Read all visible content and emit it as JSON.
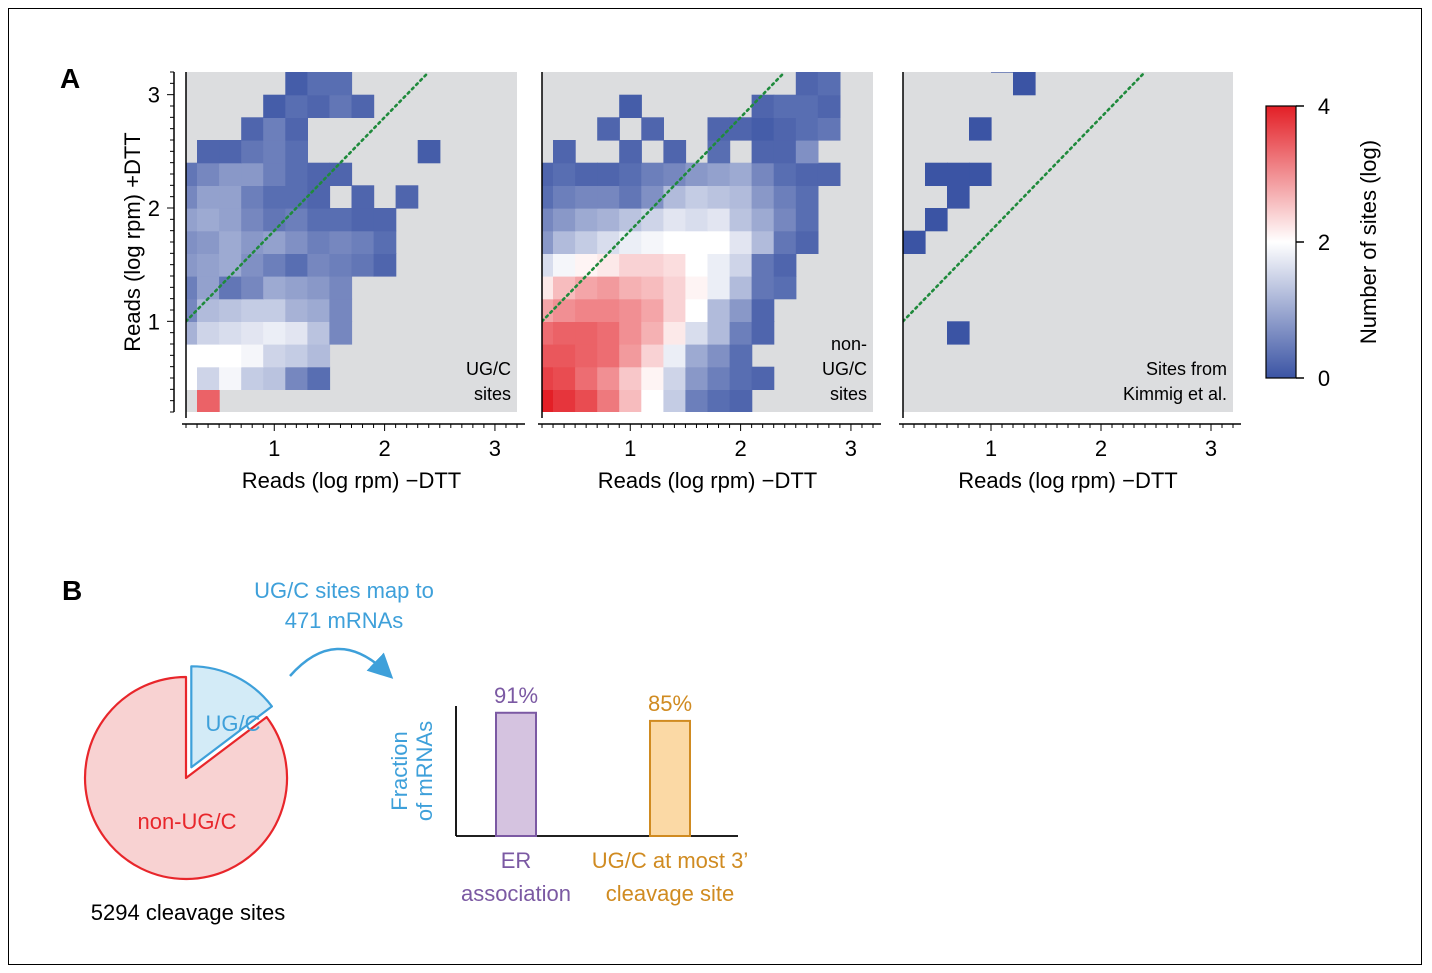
{
  "panel_labels": {
    "a": "A",
    "b": "B"
  },
  "colors": {
    "low": "#3b54a4",
    "mid": "#ffffff",
    "high": "#e31f26",
    "panel_bg": "#dcdddf",
    "diagonal": "#1f8a3c",
    "ugc_blue": "#3ea0da",
    "nonugc_red": "#e8262b",
    "purple": "#7b59a3",
    "orange": "#d08b21"
  },
  "chart_data": [
    {
      "type": "heatmap",
      "title": "",
      "xlabel": "Reads (log rpm) −DTT",
      "ylabel": "Reads (log rpm) +DTT",
      "xlim": [
        0.2,
        3.2
      ],
      "ylim": [
        0.2,
        3.2
      ],
      "xticks": [
        1,
        2,
        3
      ],
      "yticks": [
        1,
        2,
        3
      ],
      "bin_width": 0.2,
      "diagonal": "y = x",
      "annotation": "UG/C\nsites",
      "cells": [
        [
          0.4,
          0.3,
          3.4
        ],
        [
          0.2,
          0.5,
          2.0
        ],
        [
          0.4,
          0.5,
          1.5
        ],
        [
          0.6,
          0.5,
          1.9
        ],
        [
          0.8,
          0.5,
          1.4
        ],
        [
          1.0,
          0.5,
          1.3
        ],
        [
          1.2,
          0.5,
          0.6
        ],
        [
          1.4,
          0.5,
          0.3
        ],
        [
          0.2,
          0.7,
          2.0
        ],
        [
          0.4,
          0.7,
          2.0
        ],
        [
          0.6,
          0.7,
          2.0
        ],
        [
          0.8,
          0.7,
          1.9
        ],
        [
          1.0,
          0.7,
          1.5
        ],
        [
          1.2,
          0.7,
          1.4
        ],
        [
          1.4,
          0.7,
          1.2
        ],
        [
          0.2,
          0.9,
          1.1
        ],
        [
          0.4,
          0.9,
          1.5
        ],
        [
          0.6,
          0.9,
          1.6
        ],
        [
          0.8,
          0.9,
          1.7
        ],
        [
          1.0,
          0.9,
          1.8
        ],
        [
          1.2,
          0.9,
          1.7
        ],
        [
          1.4,
          0.9,
          1.3
        ],
        [
          1.6,
          0.9,
          0.6
        ],
        [
          0.2,
          1.1,
          0.6
        ],
        [
          0.4,
          1.1,
          1.2
        ],
        [
          0.6,
          1.1,
          1.3
        ],
        [
          0.8,
          1.1,
          1.4
        ],
        [
          1.0,
          1.1,
          1.4
        ],
        [
          1.2,
          1.1,
          1.1
        ],
        [
          1.4,
          1.1,
          1.0
        ],
        [
          1.6,
          1.1,
          0.6
        ],
        [
          0.2,
          1.3,
          0.5
        ],
        [
          0.4,
          1.3,
          0.9
        ],
        [
          0.6,
          1.3,
          0.4
        ],
        [
          0.8,
          1.3,
          0.6
        ],
        [
          1.0,
          1.3,
          1.0
        ],
        [
          1.2,
          1.3,
          0.9
        ],
        [
          1.4,
          1.3,
          0.8
        ],
        [
          1.6,
          1.3,
          0.6
        ],
        [
          0.2,
          1.5,
          0.8
        ],
        [
          0.4,
          1.5,
          0.9
        ],
        [
          0.6,
          1.5,
          1.0
        ],
        [
          0.8,
          1.5,
          0.7
        ],
        [
          1.0,
          1.5,
          0.5
        ],
        [
          1.2,
          1.5,
          0.3
        ],
        [
          1.4,
          1.5,
          0.6
        ],
        [
          1.6,
          1.5,
          0.5
        ],
        [
          1.8,
          1.5,
          0.4
        ],
        [
          2.0,
          1.5,
          0.2
        ],
        [
          0.2,
          1.7,
          0.7
        ],
        [
          0.4,
          1.7,
          0.8
        ],
        [
          0.6,
          1.7,
          1.0
        ],
        [
          0.8,
          1.7,
          0.8
        ],
        [
          1.0,
          1.7,
          0.9
        ],
        [
          1.2,
          1.7,
          0.7
        ],
        [
          1.4,
          1.7,
          0.5
        ],
        [
          1.6,
          1.7,
          0.6
        ],
        [
          1.8,
          1.7,
          0.5
        ],
        [
          2.0,
          1.7,
          0.3
        ],
        [
          0.2,
          1.9,
          0.9
        ],
        [
          0.4,
          1.9,
          1.0
        ],
        [
          0.6,
          1.9,
          0.9
        ],
        [
          0.8,
          1.9,
          0.6
        ],
        [
          1.0,
          1.9,
          0.4
        ],
        [
          1.2,
          1.9,
          0.5
        ],
        [
          1.4,
          1.9,
          0.3
        ],
        [
          1.6,
          1.9,
          0.3
        ],
        [
          1.8,
          1.9,
          0.2
        ],
        [
          2.0,
          1.9,
          0.2
        ],
        [
          0.2,
          2.1,
          0.6
        ],
        [
          0.4,
          2.1,
          0.9
        ],
        [
          0.6,
          2.1,
          0.9
        ],
        [
          0.8,
          2.1,
          0.5
        ],
        [
          1.0,
          2.1,
          0.3
        ],
        [
          1.2,
          2.1,
          0.3
        ],
        [
          1.4,
          2.1,
          0.2
        ],
        [
          1.8,
          2.1,
          0.2
        ],
        [
          2.2,
          2.1,
          0.2
        ],
        [
          0.2,
          2.3,
          0.4
        ],
        [
          0.4,
          2.3,
          0.6
        ],
        [
          0.6,
          2.3,
          0.8
        ],
        [
          0.8,
          2.3,
          0.8
        ],
        [
          1.0,
          2.3,
          0.5
        ],
        [
          1.2,
          2.3,
          0.3
        ],
        [
          1.4,
          2.3,
          0.2
        ],
        [
          1.6,
          2.3,
          0.2
        ],
        [
          0.4,
          2.5,
          0.2
        ],
        [
          0.6,
          2.5,
          0.2
        ],
        [
          0.8,
          2.5,
          0.4
        ],
        [
          1.0,
          2.5,
          0.5
        ],
        [
          1.2,
          2.5,
          0.3
        ],
        [
          2.4,
          2.5,
          0.1
        ],
        [
          0.8,
          2.7,
          0.2
        ],
        [
          1.0,
          2.7,
          0.5
        ],
        [
          1.2,
          2.7,
          0.2
        ],
        [
          1.0,
          2.9,
          0.1
        ],
        [
          1.2,
          2.9,
          0.3
        ],
        [
          1.4,
          2.9,
          0.2
        ],
        [
          1.6,
          2.9,
          0.4
        ],
        [
          1.8,
          2.9,
          0.2
        ],
        [
          1.2,
          3.1,
          0.1
        ],
        [
          1.4,
          3.1,
          0.3
        ],
        [
          1.6,
          3.1,
          0.3
        ]
      ]
    },
    {
      "type": "heatmap",
      "title": "",
      "xlabel": "Reads (log rpm) −DTT",
      "ylabel": "",
      "xlim": [
        0.2,
        3.2
      ],
      "ylim": [
        0.2,
        3.2
      ],
      "xticks": [
        1,
        2,
        3
      ],
      "yticks": [],
      "bin_width": 0.2,
      "diagonal": "y = x",
      "annotation": "non-\nUG/C\nsites",
      "cells": [
        [
          0.2,
          0.3,
          4.0
        ],
        [
          0.4,
          0.3,
          3.8
        ],
        [
          0.6,
          0.3,
          3.6
        ],
        [
          0.8,
          0.3,
          3.2
        ],
        [
          1.0,
          0.3,
          2.6
        ],
        [
          1.2,
          0.3,
          2.0
        ],
        [
          1.4,
          0.3,
          1.4
        ],
        [
          1.6,
          0.3,
          0.5
        ],
        [
          1.8,
          0.3,
          0.3
        ],
        [
          2.0,
          0.3,
          0.2
        ],
        [
          0.2,
          0.5,
          3.7
        ],
        [
          0.4,
          0.5,
          3.6
        ],
        [
          0.6,
          0.5,
          3.3
        ],
        [
          0.8,
          0.5,
          3.0
        ],
        [
          1.0,
          0.5,
          2.5
        ],
        [
          1.2,
          0.5,
          2.1
        ],
        [
          1.4,
          0.5,
          1.5
        ],
        [
          1.6,
          0.5,
          0.8
        ],
        [
          1.8,
          0.5,
          0.5
        ],
        [
          2.0,
          0.5,
          0.3
        ],
        [
          2.2,
          0.5,
          0.2
        ],
        [
          0.2,
          0.7,
          3.5
        ],
        [
          0.4,
          0.7,
          3.5
        ],
        [
          0.6,
          0.7,
          3.4
        ],
        [
          0.8,
          0.7,
          3.3
        ],
        [
          1.0,
          0.7,
          2.9
        ],
        [
          1.2,
          0.7,
          2.4
        ],
        [
          1.4,
          0.7,
          1.8
        ],
        [
          1.6,
          0.7,
          1.0
        ],
        [
          1.8,
          0.7,
          0.7
        ],
        [
          2.0,
          0.7,
          0.3
        ],
        [
          0.2,
          0.9,
          3.3
        ],
        [
          0.4,
          0.9,
          3.4
        ],
        [
          0.6,
          0.9,
          3.4
        ],
        [
          0.8,
          0.9,
          3.3
        ],
        [
          1.0,
          0.9,
          3.0
        ],
        [
          1.2,
          0.9,
          2.7
        ],
        [
          1.4,
          0.9,
          2.2
        ],
        [
          1.6,
          0.9,
          1.6
        ],
        [
          1.8,
          0.9,
          1.2
        ],
        [
          2.0,
          0.9,
          0.5
        ],
        [
          2.2,
          0.9,
          0.2
        ],
        [
          0.2,
          1.1,
          2.8
        ],
        [
          0.4,
          1.1,
          3.0
        ],
        [
          0.6,
          1.1,
          3.1
        ],
        [
          0.8,
          1.1,
          3.1
        ],
        [
          1.0,
          1.1,
          3.0
        ],
        [
          1.2,
          1.1,
          2.8
        ],
        [
          1.4,
          1.1,
          2.4
        ],
        [
          1.6,
          1.1,
          2.0
        ],
        [
          1.8,
          1.1,
          1.2
        ],
        [
          2.0,
          1.1,
          0.8
        ],
        [
          2.2,
          1.1,
          0.2
        ],
        [
          0.2,
          1.3,
          2.2
        ],
        [
          0.4,
          1.3,
          2.6
        ],
        [
          0.6,
          1.3,
          2.8
        ],
        [
          0.8,
          1.3,
          2.9
        ],
        [
          1.0,
          1.3,
          2.7
        ],
        [
          1.2,
          1.3,
          2.6
        ],
        [
          1.4,
          1.3,
          2.4
        ],
        [
          1.6,
          1.3,
          2.1
        ],
        [
          1.8,
          1.3,
          1.8
        ],
        [
          2.0,
          1.3,
          1.2
        ],
        [
          2.2,
          1.3,
          0.4
        ],
        [
          2.4,
          1.3,
          0.3
        ],
        [
          0.2,
          1.5,
          1.6
        ],
        [
          0.4,
          1.5,
          1.9
        ],
        [
          0.6,
          1.5,
          2.1
        ],
        [
          0.8,
          1.5,
          2.2
        ],
        [
          1.0,
          1.5,
          2.4
        ],
        [
          1.2,
          1.5,
          2.4
        ],
        [
          1.4,
          1.5,
          2.3
        ],
        [
          1.6,
          1.5,
          2.0
        ],
        [
          1.8,
          1.5,
          1.8
        ],
        [
          2.0,
          1.5,
          1.5
        ],
        [
          2.2,
          1.5,
          0.4
        ],
        [
          2.4,
          1.5,
          0.2
        ],
        [
          0.2,
          1.7,
          0.8
        ],
        [
          0.4,
          1.7,
          1.2
        ],
        [
          0.6,
          1.7,
          1.4
        ],
        [
          0.8,
          1.7,
          1.6
        ],
        [
          1.0,
          1.7,
          1.8
        ],
        [
          1.2,
          1.7,
          1.9
        ],
        [
          1.4,
          1.7,
          2.0
        ],
        [
          1.6,
          1.7,
          2.0
        ],
        [
          1.8,
          1.7,
          2.0
        ],
        [
          2.0,
          1.7,
          1.7
        ],
        [
          2.2,
          1.7,
          1.2
        ],
        [
          2.4,
          1.7,
          0.4
        ],
        [
          2.6,
          1.7,
          0.2
        ],
        [
          0.2,
          1.9,
          0.6
        ],
        [
          0.4,
          1.9,
          0.8
        ],
        [
          0.6,
          1.9,
          1.0
        ],
        [
          0.8,
          1.9,
          1.1
        ],
        [
          1.0,
          1.9,
          1.3
        ],
        [
          1.2,
          1.9,
          1.5
        ],
        [
          1.4,
          1.9,
          1.7
        ],
        [
          1.6,
          1.9,
          1.6
        ],
        [
          1.8,
          1.9,
          1.7
        ],
        [
          2.0,
          1.9,
          1.3
        ],
        [
          2.2,
          1.9,
          1.0
        ],
        [
          2.4,
          1.9,
          0.6
        ],
        [
          2.6,
          1.9,
          0.3
        ],
        [
          0.2,
          2.1,
          0.3
        ],
        [
          0.4,
          2.1,
          0.5
        ],
        [
          0.6,
          2.1,
          0.6
        ],
        [
          0.8,
          2.1,
          0.6
        ],
        [
          1.0,
          2.1,
          0.4
        ],
        [
          1.2,
          2.1,
          0.7
        ],
        [
          1.4,
          2.1,
          1.2
        ],
        [
          1.6,
          2.1,
          1.4
        ],
        [
          1.8,
          2.1,
          1.3
        ],
        [
          2.0,
          2.1,
          1.2
        ],
        [
          2.2,
          2.1,
          0.8
        ],
        [
          2.4,
          2.1,
          0.5
        ],
        [
          2.6,
          2.1,
          0.3
        ],
        [
          0.2,
          2.3,
          0.2
        ],
        [
          0.4,
          2.3,
          0.3
        ],
        [
          0.6,
          2.3,
          0.2
        ],
        [
          0.8,
          2.3,
          0.2
        ],
        [
          1.0,
          2.3,
          0.3
        ],
        [
          1.2,
          2.3,
          0.5
        ],
        [
          1.4,
          2.3,
          0.6
        ],
        [
          1.6,
          2.3,
          0.8
        ],
        [
          1.8,
          2.3,
          0.9
        ],
        [
          2.0,
          2.3,
          1.0
        ],
        [
          2.2,
          2.3,
          0.6
        ],
        [
          2.4,
          2.3,
          0.3
        ],
        [
          2.6,
          2.3,
          0.2
        ],
        [
          2.8,
          2.3,
          0.2
        ],
        [
          0.4,
          2.5,
          0.2
        ],
        [
          1.0,
          2.5,
          0.2
        ],
        [
          1.4,
          2.5,
          0.2
        ],
        [
          1.8,
          2.5,
          0.3
        ],
        [
          2.2,
          2.5,
          0.2
        ],
        [
          2.4,
          2.5,
          0.2
        ],
        [
          2.6,
          2.5,
          0.7
        ],
        [
          0.8,
          2.7,
          0.2
        ],
        [
          1.2,
          2.7,
          0.2
        ],
        [
          1.8,
          2.7,
          0.2
        ],
        [
          2.0,
          2.7,
          0.2
        ],
        [
          2.2,
          2.7,
          0.1
        ],
        [
          2.4,
          2.7,
          0.2
        ],
        [
          2.6,
          2.7,
          0.3
        ],
        [
          2.8,
          2.7,
          0.4
        ],
        [
          1.0,
          2.9,
          0.1
        ],
        [
          2.2,
          2.9,
          0.2
        ],
        [
          2.4,
          2.9,
          0.3
        ],
        [
          2.6,
          2.9,
          0.3
        ],
        [
          2.8,
          2.9,
          0.2
        ],
        [
          2.6,
          3.1,
          0.2
        ],
        [
          2.8,
          3.1,
          0.3
        ]
      ]
    },
    {
      "type": "heatmap",
      "title": "",
      "xlabel": "Reads (log rpm) −DTT",
      "ylabel": "",
      "xlim": [
        0.2,
        3.2
      ],
      "ylim": [
        0.2,
        3.2
      ],
      "xticks": [
        1,
        2,
        3
      ],
      "yticks": [],
      "bin_width": 0.2,
      "diagonal": "y = x",
      "annotation": "Sites from\nKimmig et al.",
      "cells": [
        [
          0.7,
          0.9,
          0.0
        ],
        [
          0.3,
          1.7,
          0.0
        ],
        [
          0.5,
          1.9,
          0.0
        ],
        [
          0.7,
          2.1,
          0.0
        ],
        [
          0.9,
          2.3,
          0.0
        ],
        [
          0.5,
          2.3,
          0.0
        ],
        [
          0.7,
          2.3,
          0.0
        ],
        [
          0.9,
          2.7,
          0.0
        ],
        [
          1.3,
          3.1,
          0.0
        ],
        [
          1.1,
          3.3,
          0.0
        ]
      ]
    },
    {
      "type": "colorbar",
      "label": "Number of sites (log)",
      "range": [
        0,
        4
      ],
      "ticks": [
        0,
        2,
        4
      ],
      "colors": [
        "#3b54a4",
        "#ffffff",
        "#e31f26"
      ]
    },
    {
      "type": "pie",
      "caption": "5294 cleavage sites",
      "slices": [
        {
          "label": "UG/C",
          "fraction": 0.147,
          "exploded": true
        },
        {
          "label": "non-UG/C",
          "fraction": 0.853,
          "exploded": false
        }
      ]
    },
    {
      "type": "bar",
      "annotation": "UG/C sites map to\n471 mRNAs",
      "ylabel": "Fraction\nof mRNAs",
      "ylim": [
        0,
        1
      ],
      "categories": [
        "ER\nassociation",
        "UG/C at most 3’\ncleavage site"
      ],
      "values": [
        0.91,
        0.85
      ],
      "value_labels": [
        "91%",
        "85%"
      ],
      "colors": [
        "#d5c3e0",
        "#fbd9a5"
      ],
      "edge_colors": [
        "#7b59a3",
        "#d08b21"
      ]
    }
  ]
}
